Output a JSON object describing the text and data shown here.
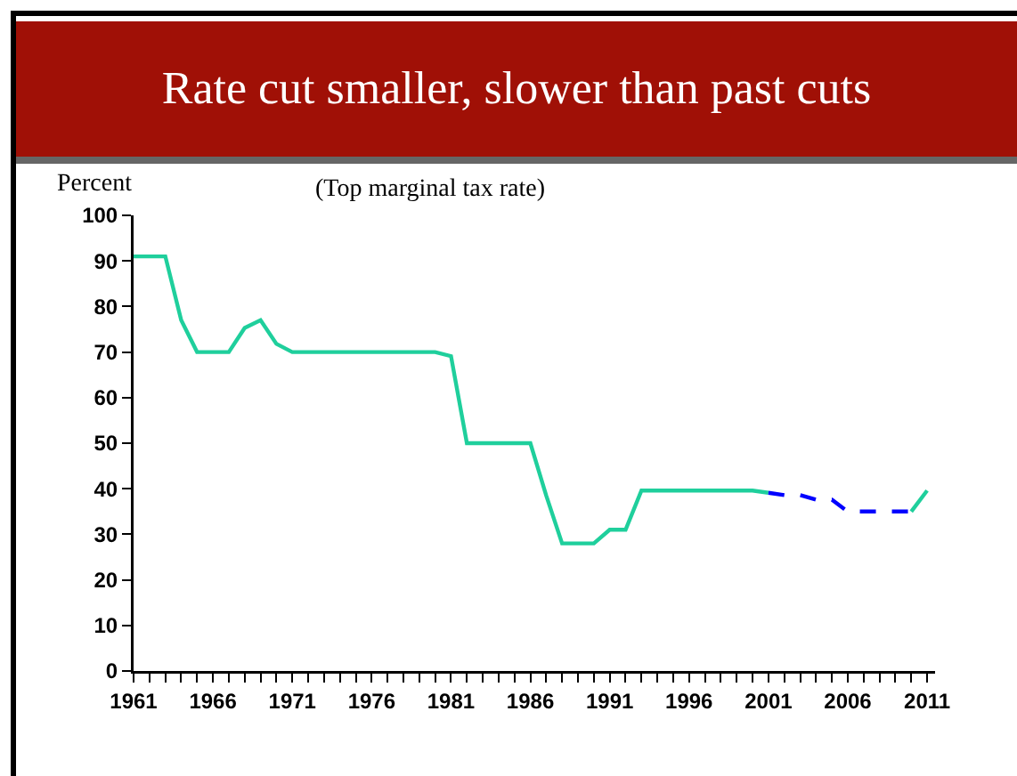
{
  "chart_data": {
    "type": "line",
    "title": "Rate cut smaller, slower than past cuts",
    "subtitle": "(Top marginal tax rate)",
    "ylabel": "Percent",
    "series": [
      {
        "color": "#1fcf9c",
        "line_style": "solid",
        "x": [
          1961,
          1962,
          1963,
          1964,
          1965,
          1966,
          1967,
          1968,
          1969,
          1970,
          1971,
          1972,
          1973,
          1974,
          1975,
          1976,
          1977,
          1978,
          1979,
          1980,
          1981,
          1982,
          1983,
          1984,
          1985,
          1986,
          1987,
          1988,
          1989,
          1990,
          1991,
          1992,
          1993,
          1994,
          1995,
          1996,
          1997,
          1998,
          1999,
          2000,
          2001,
          2002,
          2003,
          2004,
          2005,
          2006,
          2007,
          2008,
          2009,
          2010,
          2011
        ],
        "values": [
          91,
          91,
          91,
          77,
          70,
          70,
          70,
          75.3,
          77,
          71.8,
          70,
          70,
          70,
          70,
          70,
          70,
          70,
          70,
          70,
          70,
          69.1,
          50,
          50,
          50,
          50,
          50,
          38.5,
          28,
          28,
          28,
          31,
          31,
          39.6,
          39.6,
          39.6,
          39.6,
          39.6,
          39.6,
          39.6,
          39.6,
          39.1,
          null,
          null,
          null,
          null,
          null,
          null,
          null,
          null,
          35,
          39.6
        ]
      },
      {
        "color": "#0000ff",
        "line_style": "dashed",
        "x": [
          2001,
          2002,
          2003,
          2004,
          2005,
          2006,
          2007,
          2008,
          2009,
          2010
        ],
        "values": [
          39.1,
          38.6,
          38.6,
          37.6,
          37.6,
          35,
          35,
          35,
          35,
          35
        ]
      }
    ],
    "xlim": [
      1961,
      2011.5
    ],
    "xticks": [
      1961,
      {
        "value": 1962,
        "label": null
      },
      {
        "value": 1963,
        "label": null
      },
      {
        "value": 1964,
        "label": null
      },
      {
        "value": 1965,
        "label": null
      },
      1966,
      {
        "value": 1967,
        "label": null
      },
      {
        "value": 1968,
        "label": null
      },
      {
        "value": 1969,
        "label": null
      },
      {
        "value": 1970,
        "label": null
      },
      1971,
      {
        "value": 1972,
        "label": null
      },
      {
        "value": 1973,
        "label": null
      },
      {
        "value": 1974,
        "label": null
      },
      {
        "value": 1975,
        "label": null
      },
      1976,
      {
        "value": 1977,
        "label": null
      },
      {
        "value": 1978,
        "label": null
      },
      {
        "value": 1979,
        "label": null
      },
      {
        "value": 1980,
        "label": null
      },
      1981,
      {
        "value": 1982,
        "label": null
      },
      {
        "value": 1983,
        "label": null
      },
      {
        "value": 1984,
        "label": null
      },
      {
        "value": 1985,
        "label": null
      },
      1986,
      {
        "value": 1987,
        "label": null
      },
      {
        "value": 1988,
        "label": null
      },
      {
        "value": 1989,
        "label": null
      },
      {
        "value": 1990,
        "label": null
      },
      1991,
      {
        "value": 1992,
        "label": null
      },
      {
        "value": 1993,
        "label": null
      },
      {
        "value": 1994,
        "label": null
      },
      {
        "value": 1995,
        "label": null
      },
      1996,
      {
        "value": 1997,
        "label": null
      },
      {
        "value": 1998,
        "label": null
      },
      {
        "value": 1999,
        "label": null
      },
      {
        "value": 2000,
        "label": null
      },
      2001,
      {
        "value": 2002,
        "label": null
      },
      {
        "value": 2003,
        "label": null
      },
      {
        "value": 2004,
        "label": null
      },
      {
        "value": 2005,
        "label": null
      },
      2006,
      {
        "value": 2007,
        "label": null
      },
      {
        "value": 2008,
        "label": null
      },
      {
        "value": 2009,
        "label": null
      },
      {
        "value": 2010,
        "label": null
      },
      2011
    ],
    "ylim": [
      0,
      100
    ],
    "yticks": [
      0,
      10,
      20,
      30,
      40,
      50,
      60,
      70,
      80,
      90,
      100
    ],
    "grid": false,
    "marker": "none"
  }
}
